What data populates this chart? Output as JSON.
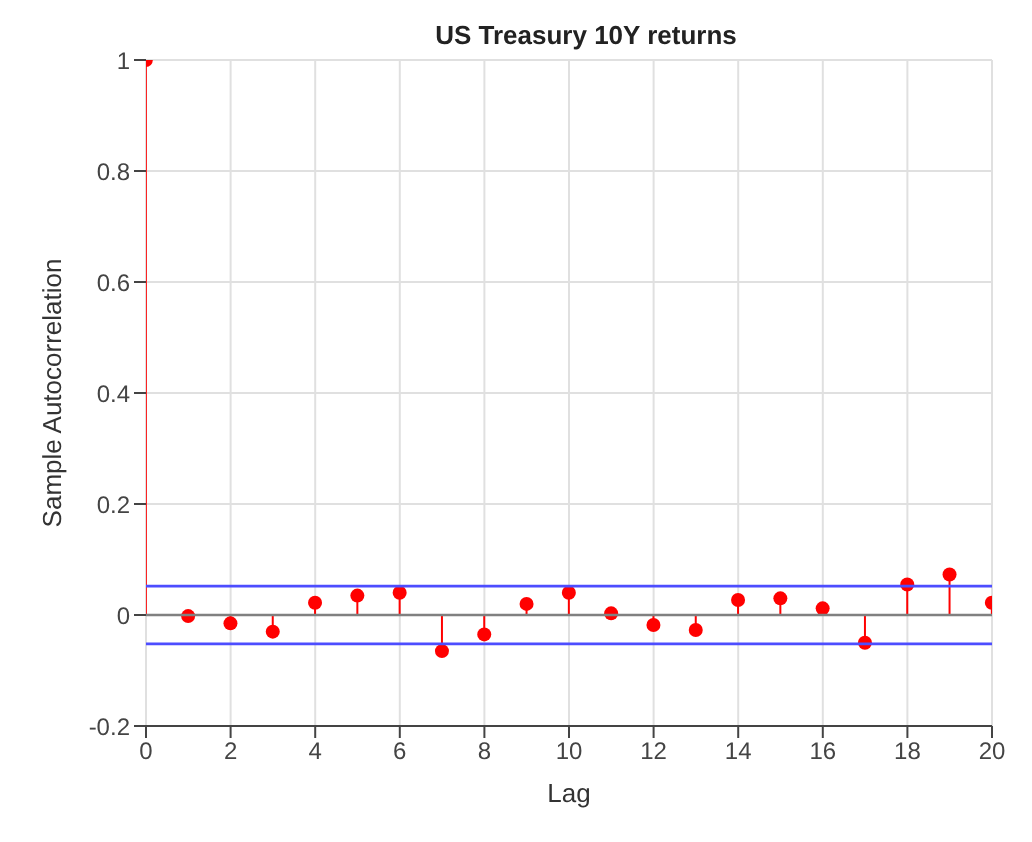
{
  "chart_data": {
    "type": "lollipop",
    "title": "US Treasury 10Y returns",
    "xlabel": "Lag",
    "ylabel": "Sample Autocorrelation",
    "x": [
      0,
      1,
      2,
      3,
      4,
      5,
      6,
      7,
      8,
      9,
      10,
      11,
      12,
      13,
      14,
      15,
      16,
      17,
      18,
      19,
      20
    ],
    "values": [
      1,
      -0.002,
      -0.015,
      -0.03,
      0.022,
      0.035,
      0.04,
      -0.065,
      -0.035,
      0.02,
      0.04,
      0.003,
      -0.018,
      -0.027,
      0.027,
      0.03,
      0.012,
      -0.05,
      0.055,
      0.073,
      0.022
    ],
    "color": "#ff0000",
    "marker": "circle",
    "grid": true,
    "xlim": [
      0,
      20
    ],
    "xticks": [
      0,
      2,
      4,
      6,
      8,
      10,
      12,
      14,
      16,
      18,
      20
    ],
    "ylim": [
      -0.2,
      1
    ],
    "yticks": [
      -0.2,
      0,
      0.2,
      0.4,
      0.6,
      0.8,
      1
    ],
    "ref_lines": [
      {
        "axis": "y",
        "value": 0.052,
        "color": "#4d4dff"
      },
      {
        "axis": "y",
        "value": -0.052,
        "color": "#4d4dff"
      },
      {
        "axis": "y",
        "value": 0,
        "color": "#808080"
      }
    ]
  }
}
